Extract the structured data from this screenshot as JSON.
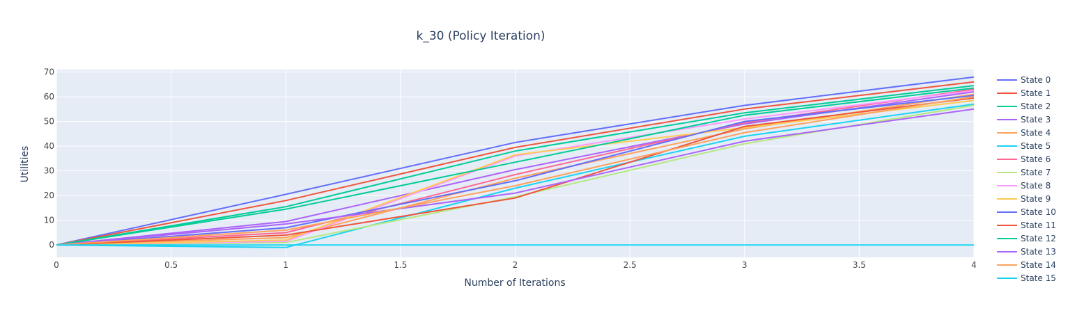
{
  "chart_data": {
    "type": "line",
    "title": "k_30 (Policy Iteration)",
    "xlabel": "Number of Iterations",
    "ylabel": "Utilities",
    "xlim": [
      0,
      4
    ],
    "ylim": [
      -5,
      71
    ],
    "x": [
      0,
      1,
      2,
      3,
      4
    ],
    "x_ticks": [
      0,
      0.5,
      1,
      1.5,
      2,
      2.5,
      3,
      3.5,
      4
    ],
    "x_tick_labels": [
      "0",
      "0.5",
      "1",
      "1.5",
      "2",
      "2.5",
      "3",
      "3.5",
      "4"
    ],
    "y_ticks": [
      0,
      10,
      20,
      30,
      40,
      50,
      60,
      70
    ],
    "y_tick_labels": [
      "0",
      "10",
      "20",
      "30",
      "40",
      "50",
      "60",
      "70"
    ],
    "grid": true,
    "legend_position": "right",
    "background_color": "#e5ecf6",
    "series": [
      {
        "name": "State 0",
        "color": "#636efa",
        "values": [
          0,
          20.5,
          41.5,
          56.5,
          68.0
        ]
      },
      {
        "name": "State 1",
        "color": "#EF553B",
        "values": [
          0,
          18.0,
          39.5,
          55.0,
          66.0
        ]
      },
      {
        "name": "State 2",
        "color": "#00cc96",
        "values": [
          0,
          15.5,
          38.0,
          53.5,
          64.5
        ]
      },
      {
        "name": "State 3",
        "color": "#ab63fa",
        "values": [
          0,
          9.5,
          30.5,
          49.0,
          62.0
        ]
      },
      {
        "name": "State 4",
        "color": "#FFA15A",
        "values": [
          0,
          3.0,
          27.0,
          47.0,
          61.0
        ]
      },
      {
        "name": "State 5",
        "color": "#19d3f3",
        "values": [
          0,
          -1.0,
          23.0,
          44.0,
          57.0
        ]
      },
      {
        "name": "State 6",
        "color": "#FF6692",
        "values": [
          0,
          5.0,
          28.5,
          49.5,
          63.0
        ]
      },
      {
        "name": "State 7",
        "color": "#B6E880",
        "values": [
          0,
          1.0,
          19.5,
          41.0,
          56.5
        ]
      },
      {
        "name": "State 8",
        "color": "#FF97FF",
        "values": [
          0,
          1.5,
          36.0,
          51.0,
          62.5
        ]
      },
      {
        "name": "State 9",
        "color": "#FECB52",
        "values": [
          0,
          2.0,
          36.5,
          47.5,
          58.5
        ]
      },
      {
        "name": "State 10",
        "color": "#636efa",
        "values": [
          0,
          7.0,
          26.0,
          50.0,
          60.5
        ]
      },
      {
        "name": "State 11",
        "color": "#EF553B",
        "values": [
          0,
          4.0,
          19.0,
          48.0,
          59.5
        ]
      },
      {
        "name": "State 12",
        "color": "#00cc96",
        "values": [
          0,
          14.5,
          33.5,
          52.5,
          63.5
        ]
      },
      {
        "name": "State 13",
        "color": "#ab63fa",
        "values": [
          0,
          8.5,
          21.0,
          42.0,
          55.0
        ]
      },
      {
        "name": "State 14",
        "color": "#FFA15A",
        "values": [
          0,
          6.0,
          24.0,
          45.5,
          60.0
        ]
      },
      {
        "name": "State 15",
        "color": "#19d3f3",
        "values": [
          0,
          0,
          0,
          0,
          0
        ]
      }
    ]
  }
}
